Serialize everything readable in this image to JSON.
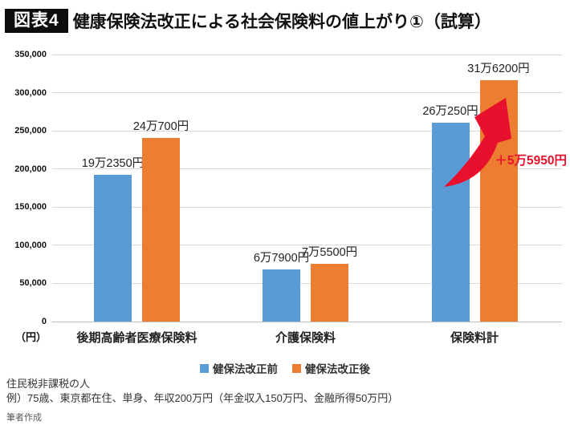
{
  "header": {
    "badge": "図表4",
    "title": "健康保険法改正による社会保険料の値上がり①（試算）"
  },
  "chart_data": {
    "type": "bar",
    "categories": [
      "後期高齢者医療保険料",
      "介護保険料",
      "保険料計"
    ],
    "series": [
      {
        "name": "健保法改正前",
        "color": "#5b9bd5",
        "values": [
          192350,
          67900,
          260250
        ],
        "value_labels": [
          "19万2350円",
          "6万7900円",
          "26万250円"
        ]
      },
      {
        "name": "健保法改正後",
        "color": "#ed7d31",
        "values": [
          240700,
          75500,
          316200
        ],
        "value_labels": [
          "24万700円",
          "7万5500円",
          "31万6200円"
        ]
      }
    ],
    "ylim": [
      0,
      350000
    ],
    "ytick_step": 50000,
    "yticks": [
      "0",
      "50,000",
      "100,000",
      "150,000",
      "200,000",
      "250,000",
      "300,000",
      "350,000"
    ],
    "unit_label": "（円）",
    "grid": true,
    "legend_position": "bottom",
    "annotation": {
      "text": "＋5万5950円",
      "color": "#e8112d",
      "applies_to": "保険料計"
    }
  },
  "footer": {
    "line1": "住民税非課税の人",
    "line2": "例）75歳、東京都在住、単身、年収200万円（年金収入150万円、金融所得50万円）",
    "credit": "筆者作成"
  }
}
